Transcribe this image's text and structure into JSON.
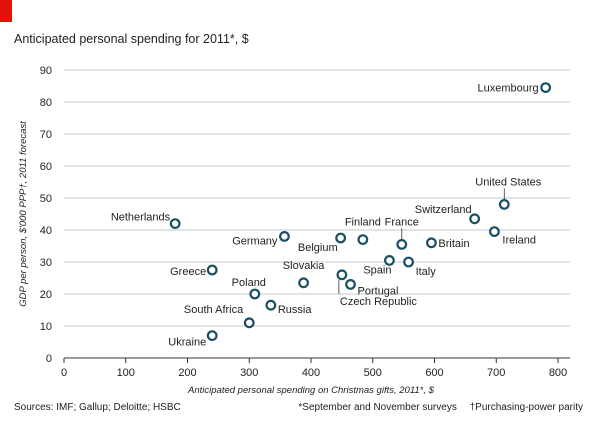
{
  "colors": {
    "accent_tab": "#e3120b",
    "marker_stroke": "#1a4e63",
    "grid": "#a9bcc6",
    "axis": "#333333"
  },
  "header": {
    "title": "Anticipated personal spending for 2011*, $"
  },
  "footer": {
    "sources": "Sources: IMF; Gallup; Deloitte; HSBC",
    "footnote_1": "*September and November surveys",
    "footnote_2": "†Purchasing-power parity"
  },
  "chart_data": {
    "type": "scatter",
    "title": "Anticipated personal spending for 2011*, $",
    "xlabel": "Anticipated personal spending on Christmas gifts, 2011*, $",
    "ylabel": "GDP per person, $'000 PPP†, 2011 forecast",
    "xlim": [
      0,
      800
    ],
    "ylim": [
      0,
      90
    ],
    "xticks": [
      0,
      100,
      200,
      300,
      400,
      500,
      600,
      700,
      800
    ],
    "yticks": [
      0,
      10,
      20,
      30,
      40,
      50,
      60,
      70,
      80,
      90
    ],
    "grid": "horizontal",
    "points": [
      {
        "name": "Luxembourg",
        "x": 780,
        "y": 84.5
      },
      {
        "name": "United States",
        "x": 713,
        "y": 48
      },
      {
        "name": "Switzerland",
        "x": 665,
        "y": 43.5
      },
      {
        "name": "Ireland",
        "x": 697,
        "y": 39.5
      },
      {
        "name": "Netherlands",
        "x": 180,
        "y": 42
      },
      {
        "name": "Germany",
        "x": 357,
        "y": 38
      },
      {
        "name": "Belgium",
        "x": 448,
        "y": 37.5
      },
      {
        "name": "Finland",
        "x": 484,
        "y": 37
      },
      {
        "name": "France",
        "x": 547,
        "y": 35.5
      },
      {
        "name": "Britain",
        "x": 595,
        "y": 36
      },
      {
        "name": "Spain",
        "x": 527,
        "y": 30.5
      },
      {
        "name": "Italy",
        "x": 558,
        "y": 30
      },
      {
        "name": "Greece",
        "x": 240,
        "y": 27.5
      },
      {
        "name": "Slovakia",
        "x": 388,
        "y": 23.5
      },
      {
        "name": "Czech Republic",
        "x": 450,
        "y": 26
      },
      {
        "name": "Portugal",
        "x": 464,
        "y": 23
      },
      {
        "name": "Poland",
        "x": 309,
        "y": 20
      },
      {
        "name": "Russia",
        "x": 335,
        "y": 16.5
      },
      {
        "name": "South Africa",
        "x": 300,
        "y": 11
      },
      {
        "name": "Ukraine",
        "x": 240,
        "y": 7
      }
    ]
  }
}
